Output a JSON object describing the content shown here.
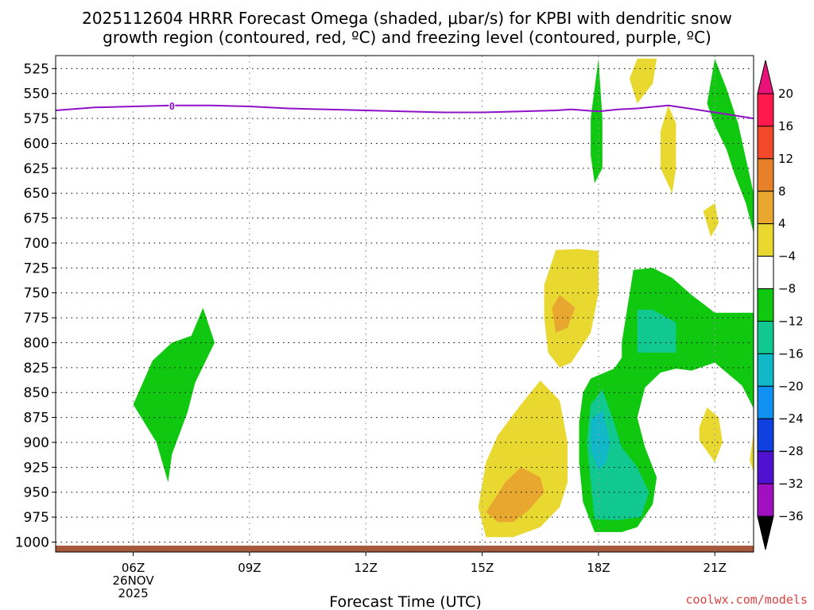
{
  "chart_data": {
    "type": "contour",
    "title_line1": "2025112604 HRRR Forecast Omega (shaded, μbar/s) for KPBI with dendritic snow",
    "title_line2": "growth region (contoured, red, ºC) and freezing level (contoured, purple, ºC)",
    "xlabel": "Forecast Time (UTC)",
    "credit": "coolwx.com/models",
    "y_axis": {
      "units": "hPa",
      "ticks": [
        "525",
        "550",
        "575",
        "600",
        "625",
        "650",
        "675",
        "700",
        "725",
        "750",
        "775",
        "800",
        "825",
        "850",
        "875",
        "900",
        "925",
        "950",
        "975",
        "1000"
      ],
      "range": [
        1010,
        512
      ]
    },
    "x_axis": {
      "range_hours": [
        4,
        22
      ],
      "ticks": [
        {
          "hour": 6,
          "label": "06Z",
          "sub1": "26NOV",
          "sub2": "2025"
        },
        {
          "hour": 9,
          "label": "09Z"
        },
        {
          "hour": 12,
          "label": "12Z"
        },
        {
          "hour": 15,
          "label": "15Z"
        },
        {
          "hour": 18,
          "label": "18Z"
        },
        {
          "hour": 21,
          "label": "21Z"
        }
      ]
    },
    "colorbar": {
      "labels": [
        "20",
        "16",
        "12",
        "8",
        "4",
        "-4",
        "-8",
        "-12",
        "-16",
        "-20",
        "-24",
        "-28",
        "-32",
        "-36"
      ],
      "colors": [
        "#ff1a4d",
        "#f04a2a",
        "#e8802a",
        "#e8a830",
        "#e8d830",
        "#ffffff",
        "#10c810",
        "#10c890",
        "#10b8c8",
        "#1090f0",
        "#1040e0",
        "#5010d0",
        "#a010c0",
        "#a8a8a8"
      ],
      "top_arrow_color": "#e8127a",
      "bottom_arrow_color": "#000000"
    },
    "freezing_level": {
      "label": "0",
      "color": "#9010c8",
      "points_hour_hpa": [
        [
          4.0,
          567
        ],
        [
          5.0,
          564
        ],
        [
          6.0,
          563
        ],
        [
          7.0,
          562
        ],
        [
          8.0,
          562
        ],
        [
          9.0,
          563
        ],
        [
          10.0,
          565
        ],
        [
          11.0,
          566
        ],
        [
          12.0,
          567
        ],
        [
          13.0,
          568
        ],
        [
          14.0,
          569
        ],
        [
          15.0,
          569
        ],
        [
          16.0,
          568
        ],
        [
          16.9,
          567
        ],
        [
          17.3,
          566
        ],
        [
          18.0,
          568
        ],
        [
          18.5,
          566
        ],
        [
          19.0,
          565
        ],
        [
          19.8,
          562
        ],
        [
          20.5,
          566
        ],
        [
          21.0,
          569
        ],
        [
          22.0,
          575
        ]
      ]
    },
    "omega_regions": [
      {
        "level": "-4 to -8",
        "color": "#10c810",
        "points_hour_hpa": [
          [
            6.0,
            862
          ],
          [
            6.5,
            818
          ],
          [
            7.0,
            800
          ],
          [
            7.5,
            793
          ],
          [
            7.8,
            765
          ],
          [
            8.1,
            800
          ],
          [
            7.6,
            840
          ],
          [
            7.4,
            870
          ],
          [
            7.0,
            912
          ],
          [
            6.9,
            940
          ],
          [
            6.6,
            900
          ]
        ]
      },
      {
        "level": "-4 to -8",
        "color": "#10c810",
        "points_hour_hpa": [
          [
            17.8,
            575
          ],
          [
            18.0,
            515
          ],
          [
            18.1,
            575
          ],
          [
            18.1,
            625
          ],
          [
            17.9,
            640
          ],
          [
            17.8,
            612
          ]
        ]
      },
      {
        "level": "-4 to -8",
        "color": "#10c810",
        "points_hour_hpa": [
          [
            21.0,
            515
          ],
          [
            21.3,
            545
          ],
          [
            21.6,
            580
          ],
          [
            21.8,
            615
          ],
          [
            22.0,
            650
          ],
          [
            22.0,
            690
          ],
          [
            21.8,
            660
          ],
          [
            21.5,
            630
          ],
          [
            21.3,
            606
          ],
          [
            21.0,
            582
          ],
          [
            20.8,
            560
          ]
        ]
      },
      {
        "level": "-4 to -8",
        "color": "#10c810",
        "points_hour_hpa": [
          [
            18.6,
            800
          ],
          [
            18.9,
            727
          ],
          [
            19.4,
            725
          ],
          [
            19.9,
            735
          ],
          [
            20.4,
            752
          ],
          [
            21.0,
            770
          ],
          [
            22.0,
            770
          ],
          [
            22.0,
            866
          ],
          [
            21.7,
            843
          ],
          [
            21.0,
            820
          ],
          [
            20.4,
            828
          ],
          [
            20.0,
            826
          ],
          [
            19.6,
            830
          ],
          [
            19.2,
            845
          ],
          [
            19.0,
            875
          ],
          [
            19.2,
            905
          ],
          [
            19.5,
            935
          ],
          [
            19.4,
            962
          ],
          [
            19.0,
            985
          ],
          [
            18.6,
            990
          ],
          [
            17.9,
            990
          ],
          [
            17.6,
            960
          ],
          [
            17.5,
            920
          ],
          [
            17.5,
            880
          ],
          [
            17.6,
            850
          ],
          [
            17.8,
            836
          ],
          [
            18.4,
            826
          ],
          [
            18.6,
            815
          ]
        ]
      },
      {
        "level": "-8 to -12",
        "color": "#10c890",
        "points_hour_hpa": [
          [
            17.8,
            862
          ],
          [
            18.1,
            847
          ],
          [
            18.4,
            880
          ],
          [
            18.6,
            905
          ],
          [
            19.0,
            925
          ],
          [
            19.3,
            950
          ],
          [
            19.1,
            975
          ],
          [
            18.5,
            978
          ],
          [
            17.9,
            977
          ],
          [
            17.8,
            940
          ],
          [
            17.7,
            900
          ]
        ]
      },
      {
        "level": "-8 to -12",
        "color": "#10c890",
        "points_hour_hpa": [
          [
            19.0,
            767
          ],
          [
            19.4,
            767
          ],
          [
            20.0,
            780
          ],
          [
            20.0,
            810
          ],
          [
            19.0,
            810
          ]
        ]
      },
      {
        "level": "-12 to -16",
        "color": "#10b8c8",
        "points_hour_hpa": [
          [
            17.8,
            877
          ],
          [
            18.1,
            868
          ],
          [
            18.3,
            900
          ],
          [
            18.2,
            920
          ],
          [
            18.0,
            928
          ],
          [
            17.8,
            908
          ]
        ]
      },
      {
        "level": "4 to 8",
        "color": "#e8d830",
        "points_hour_hpa": [
          [
            16.6,
            742
          ],
          [
            16.9,
            707
          ],
          [
            17.5,
            706
          ],
          [
            18.0,
            708
          ],
          [
            18.0,
            750
          ],
          [
            17.8,
            790
          ],
          [
            17.5,
            808
          ],
          [
            17.3,
            820
          ],
          [
            17.0,
            825
          ],
          [
            16.7,
            810
          ],
          [
            16.6,
            775
          ]
        ]
      },
      {
        "level": "4 to 8",
        "color": "#e8d830",
        "points_hour_hpa": [
          [
            14.9,
            965
          ],
          [
            15.1,
            920
          ],
          [
            15.4,
            893
          ],
          [
            16.0,
            862
          ],
          [
            16.5,
            838
          ],
          [
            17.0,
            858
          ],
          [
            17.2,
            900
          ],
          [
            17.2,
            940
          ],
          [
            17.0,
            965
          ],
          [
            16.5,
            985
          ],
          [
            15.8,
            995
          ],
          [
            15.1,
            995
          ]
        ]
      },
      {
        "level": "4 to 8",
        "color": "#e8d830",
        "points_hour_hpa": [
          [
            19.0,
            515
          ],
          [
            19.5,
            515
          ],
          [
            19.4,
            540
          ],
          [
            19.0,
            560
          ],
          [
            18.8,
            535
          ]
        ]
      },
      {
        "level": "4 to 8",
        "color": "#e8d830",
        "points_hour_hpa": [
          [
            19.6,
            588
          ],
          [
            19.8,
            562
          ],
          [
            20.0,
            580
          ],
          [
            20.0,
            625
          ],
          [
            19.9,
            650
          ],
          [
            19.6,
            625
          ]
        ]
      },
      {
        "level": "4 to 8",
        "color": "#e8d830",
        "points_hour_hpa": [
          [
            20.7,
            668
          ],
          [
            21.0,
            660
          ],
          [
            21.1,
            680
          ],
          [
            20.9,
            694
          ]
        ]
      },
      {
        "level": "4 to 8",
        "color": "#e8d830",
        "points_hour_hpa": [
          [
            20.6,
            885
          ],
          [
            20.8,
            865
          ],
          [
            21.1,
            875
          ],
          [
            21.2,
            900
          ],
          [
            21.0,
            920
          ],
          [
            20.6,
            898
          ]
        ]
      },
      {
        "level": "4 to 8",
        "color": "#e8d830",
        "points_hour_hpa": [
          [
            22.0,
            930
          ],
          [
            21.9,
            918
          ],
          [
            22.0,
            890
          ]
        ]
      },
      {
        "level": "8 to 12",
        "color": "#e8a830",
        "points_hour_hpa": [
          [
            16.8,
            765
          ],
          [
            17.0,
            752
          ],
          [
            17.4,
            765
          ],
          [
            17.2,
            785
          ],
          [
            16.9,
            790
          ]
        ]
      },
      {
        "level": "8 to 12",
        "color": "#e8a830",
        "points_hour_hpa": [
          [
            15.1,
            970
          ],
          [
            15.6,
            940
          ],
          [
            16.0,
            925
          ],
          [
            16.5,
            935
          ],
          [
            16.6,
            950
          ],
          [
            16.2,
            968
          ],
          [
            15.8,
            980
          ],
          [
            15.4,
            980
          ]
        ]
      }
    ],
    "ground": {
      "color": "#a5583a"
    }
  }
}
